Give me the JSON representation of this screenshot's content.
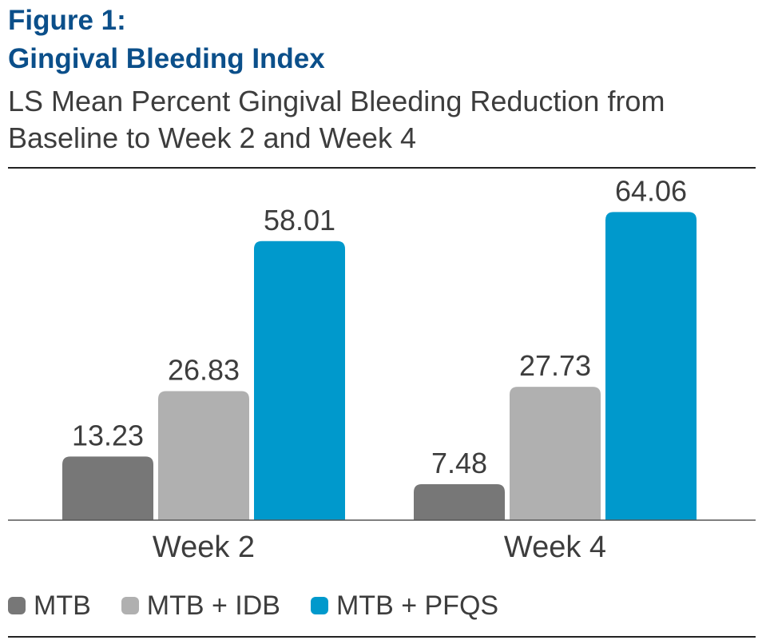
{
  "header": {
    "figure_label": "Figure 1:",
    "figure_name": "Gingival Bleeding Index"
  },
  "chart_data": {
    "type": "bar",
    "title": "Figure 1: Gingival Bleeding Index",
    "subtitle": "LS Mean Percent Gingival Bleeding Reduction from Baseline to Week 2 and Week 4",
    "categories": [
      "Week 2",
      "Week 4"
    ],
    "series": [
      {
        "name": "MTB",
        "values": [
          13.23,
          7.48
        ],
        "labels": [
          "13.23",
          "7.48"
        ],
        "color": "#777777"
      },
      {
        "name": "MTB + IDB",
        "values": [
          26.83,
          27.73
        ],
        "labels": [
          "26.83",
          "27.73"
        ],
        "color": "#b0b0b0"
      },
      {
        "name": "MTB + PFQS",
        "values": [
          58.01,
          64.06
        ],
        "labels": [
          "58.01",
          "64.06"
        ],
        "color": "#0099cc"
      }
    ],
    "ylim": [
      0,
      70
    ],
    "xlabel": "",
    "ylabel": "",
    "grid": false,
    "legend_position": "bottom-left"
  },
  "colors": {
    "title": "#0b4f8a",
    "text": "#3d3d3d",
    "axis": "#555555"
  }
}
